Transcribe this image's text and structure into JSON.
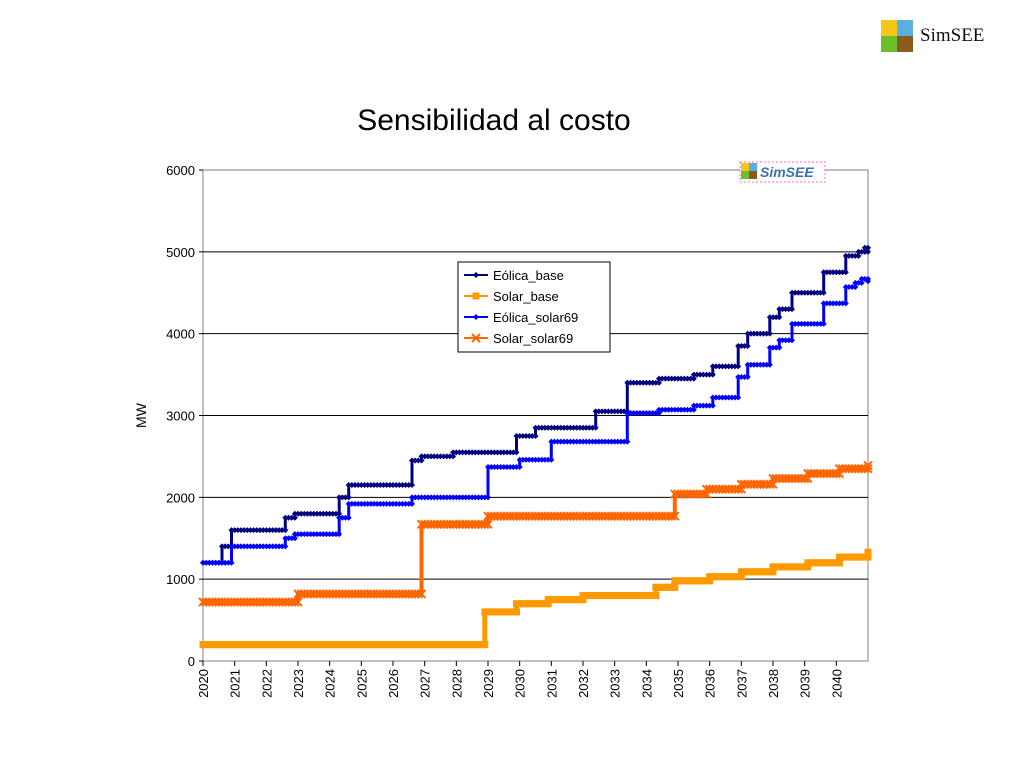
{
  "slide": {
    "title": "Sensibilidad al costo",
    "logo_text": "SimSEE",
    "logo_colors": [
      "#f5c518",
      "#5aaee0",
      "#6cbf2a",
      "#8b5a1e"
    ]
  },
  "chart_data": {
    "type": "line",
    "title": "",
    "xlabel": "",
    "ylabel": "MW",
    "ylim": [
      0,
      6000
    ],
    "xlim": [
      2020,
      2041
    ],
    "yticks": [
      0,
      1000,
      2000,
      3000,
      4000,
      5000,
      6000
    ],
    "xticks": [
      "2020",
      "2021",
      "2022",
      "2023",
      "2024",
      "2025",
      "2026",
      "2027",
      "2028",
      "2029",
      "2030",
      "2031",
      "2032",
      "2033",
      "2034",
      "2035",
      "2036",
      "2037",
      "2038",
      "2039",
      "2040"
    ],
    "grid": "horizontal",
    "legend_position": "center-top",
    "watermark": "SimSEE",
    "series": [
      {
        "name": "Eólica_base",
        "color": "#000080",
        "marker": "diamond",
        "steps": [
          [
            2020,
            1200
          ],
          [
            2020.6,
            1400
          ],
          [
            2020.9,
            1600
          ],
          [
            2022.6,
            1750
          ],
          [
            2022.9,
            1800
          ],
          [
            2024.3,
            2000
          ],
          [
            2024.6,
            2150
          ],
          [
            2026.6,
            2450
          ],
          [
            2026.9,
            2500
          ],
          [
            2027.9,
            2550
          ],
          [
            2029.9,
            2750
          ],
          [
            2030.5,
            2850
          ],
          [
            2032.4,
            3050
          ],
          [
            2033.4,
            3400
          ],
          [
            2034.4,
            3450
          ],
          [
            2035.5,
            3500
          ],
          [
            2036.1,
            3600
          ],
          [
            2036.9,
            3850
          ],
          [
            2037.2,
            4000
          ],
          [
            2037.9,
            4200
          ],
          [
            2038.2,
            4300
          ],
          [
            2038.6,
            4500
          ],
          [
            2039.6,
            4750
          ],
          [
            2040.3,
            4950
          ],
          [
            2040.7,
            5000
          ],
          [
            2040.9,
            5050
          ],
          [
            2041,
            5000
          ]
        ]
      },
      {
        "name": "Solar_base",
        "color": "#ff9900",
        "marker": "square",
        "steps": [
          [
            2020,
            200
          ],
          [
            2028.9,
            600
          ],
          [
            2029.9,
            700
          ],
          [
            2030.9,
            750
          ],
          [
            2032.0,
            800
          ],
          [
            2034.3,
            900
          ],
          [
            2034.9,
            980
          ],
          [
            2036.0,
            1030
          ],
          [
            2037.0,
            1090
          ],
          [
            2038.0,
            1150
          ],
          [
            2039.1,
            1200
          ],
          [
            2040.1,
            1270
          ],
          [
            2041,
            1330
          ]
        ]
      },
      {
        "name": "Eólica_solar69",
        "color": "#0000ff",
        "marker": "diamond",
        "steps": [
          [
            2020,
            1200
          ],
          [
            2020.9,
            1400
          ],
          [
            2022.6,
            1500
          ],
          [
            2022.9,
            1550
          ],
          [
            2024.3,
            1750
          ],
          [
            2024.6,
            1920
          ],
          [
            2026.6,
            2000
          ],
          [
            2029.0,
            2370
          ],
          [
            2030.0,
            2460
          ],
          [
            2031.0,
            2680
          ],
          [
            2033.4,
            3030
          ],
          [
            2034.4,
            3070
          ],
          [
            2035.5,
            3120
          ],
          [
            2036.1,
            3220
          ],
          [
            2036.9,
            3470
          ],
          [
            2037.2,
            3620
          ],
          [
            2037.9,
            3830
          ],
          [
            2038.2,
            3920
          ],
          [
            2038.6,
            4120
          ],
          [
            2039.6,
            4370
          ],
          [
            2040.3,
            4570
          ],
          [
            2040.6,
            4620
          ],
          [
            2040.8,
            4670
          ],
          [
            2041,
            4640
          ]
        ]
      },
      {
        "name": "Solar_solar69",
        "color": "#ff6600",
        "marker": "x",
        "steps": [
          [
            2020,
            720
          ],
          [
            2023.0,
            820
          ],
          [
            2026.9,
            1670
          ],
          [
            2029.0,
            1770
          ],
          [
            2034.9,
            2040
          ],
          [
            2035.9,
            2100
          ],
          [
            2037.0,
            2160
          ],
          [
            2038.0,
            2230
          ],
          [
            2039.1,
            2290
          ],
          [
            2040.1,
            2350
          ],
          [
            2041,
            2390
          ]
        ]
      }
    ]
  }
}
